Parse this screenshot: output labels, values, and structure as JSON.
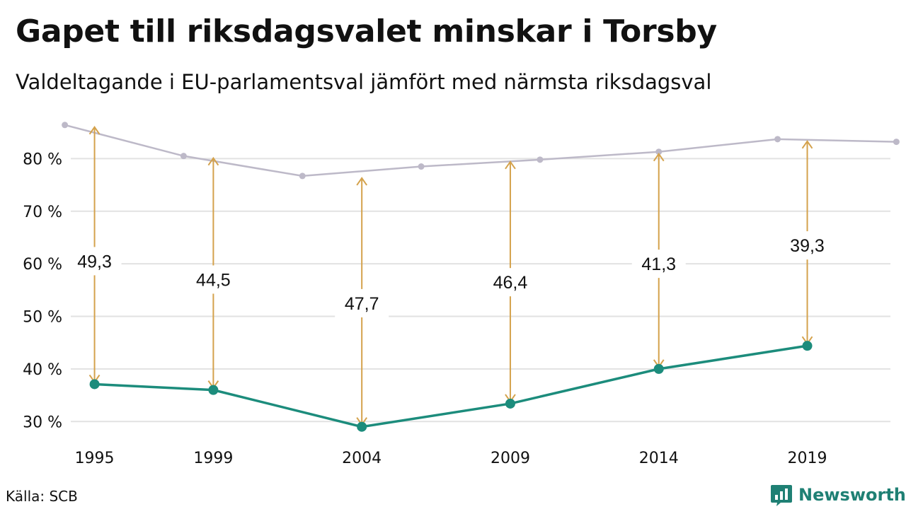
{
  "title": "Gapet till riksdagsvalet minskar i Torsby",
  "subtitle": "Valdeltagande i EU-parlamentsval jämfört med närmsta riksdagsval",
  "source": "Källa: SCB",
  "brand": {
    "name": "Newsworthy",
    "icon": "bar-chart-logo-icon"
  },
  "colors": {
    "eu_line": "#1c8c7c",
    "riksdag_line": "#bdb9c8",
    "gap_arrow": "#d4a24c",
    "grid": "#e2e2e2",
    "brand": "#1f8074"
  },
  "chart_data": {
    "type": "line",
    "title": "Gapet till riksdagsvalet minskar i Torsby",
    "subtitle": "Valdeltagande i EU-parlamentsval jämfört med närmsta riksdagsval",
    "xlim": [
      1994.2,
      2021.8
    ],
    "ylim": [
      26,
      90
    ],
    "yticks": [
      30,
      40,
      50,
      60,
      70,
      80
    ],
    "ytick_labels": [
      "30 %",
      "40 %",
      "50 %",
      "60 %",
      "70 %",
      "80 %"
    ],
    "xticks": [
      1995,
      1999,
      2004,
      2009,
      2014,
      2019
    ],
    "xtick_labels": [
      "1995",
      "1999",
      "2004",
      "2009",
      "2014",
      "2019"
    ],
    "grid": true,
    "legend": "none",
    "series": [
      {
        "key": "eu",
        "x": [
          1995,
          1999,
          2004,
          2009,
          2014,
          2019
        ],
        "y": [
          37.1,
          36.0,
          29.0,
          33.4,
          40.0,
          44.4
        ]
      },
      {
        "key": "riksdag",
        "x": [
          1994,
          1998,
          2002,
          2006,
          2010,
          2014,
          2018,
          2022
        ],
        "y": [
          86.4,
          80.5,
          76.7,
          78.5,
          79.8,
          81.3,
          83.7,
          83.2
        ]
      }
    ],
    "gaps": [
      {
        "x": 1995,
        "value": 49.3,
        "label": "49,3",
        "label_y": 60.5
      },
      {
        "x": 1999,
        "value": 44.5,
        "label": "44,5",
        "label_y": 57.0
      },
      {
        "x": 2004,
        "value": 47.7,
        "label": "47,7",
        "label_y": 52.5
      },
      {
        "x": 2009,
        "value": 46.4,
        "label": "46,4",
        "label_y": 56.5
      },
      {
        "x": 2014,
        "value": 41.3,
        "label": "41,3",
        "label_y": 60.0
      },
      {
        "x": 2019,
        "value": 39.3,
        "label": "39,3",
        "label_y": 63.5
      }
    ]
  }
}
